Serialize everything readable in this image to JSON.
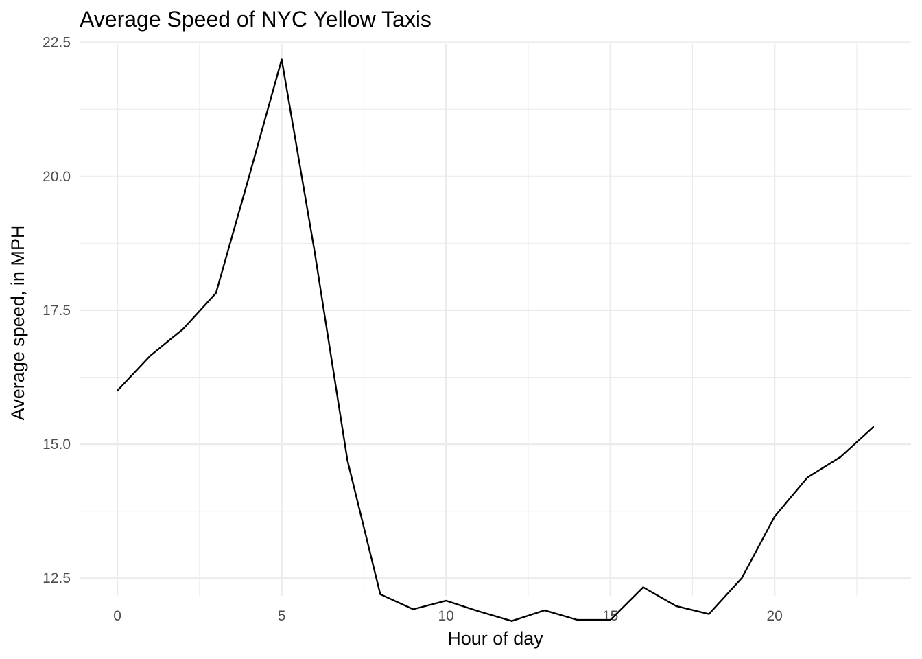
{
  "chart_data": {
    "type": "line",
    "title": "Average Speed of NYC Yellow Taxis",
    "xlabel": "Hour of day",
    "ylabel": "Average speed, in MPH",
    "x": [
      0,
      1,
      2,
      3,
      4,
      5,
      6,
      7,
      8,
      9,
      10,
      11,
      12,
      13,
      14,
      15,
      16,
      17,
      18,
      19,
      20,
      21,
      22,
      23
    ],
    "series": [
      {
        "values": [
          16.0,
          16.65,
          17.15,
          17.82,
          19.98,
          22.18,
          18.6,
          14.7,
          12.2,
          11.92,
          12.08,
          11.88,
          11.7,
          11.9,
          11.72,
          11.72,
          12.33,
          11.98,
          11.83,
          12.5,
          13.65,
          14.38,
          14.76,
          15.32
        ]
      }
    ],
    "xlim": [
      -1.15,
      24.15
    ],
    "ylim": [
      12.17,
      22.47
    ],
    "x_ticks": [
      0,
      5,
      10,
      15,
      20
    ],
    "x_tick_labels": [
      "0",
      "5",
      "10",
      "15",
      "20"
    ],
    "y_ticks": [
      12.5,
      15.0,
      17.5,
      20.0,
      22.5
    ],
    "y_tick_labels": [
      "12.5",
      "15.0",
      "17.5",
      "20.0",
      "22.5"
    ],
    "grid": true,
    "line_color": "#000000",
    "grid_color": "#ebebeb"
  }
}
